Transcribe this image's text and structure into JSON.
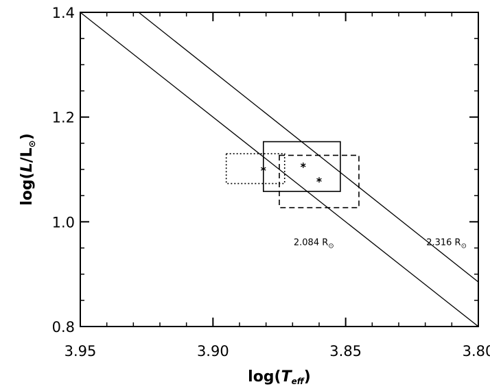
{
  "chart_data": {
    "type": "line",
    "xlim": [
      3.95,
      3.8
    ],
    "ylim": [
      0.8,
      1.4
    ],
    "x_ticks": [
      3.95,
      3.9,
      3.85,
      3.8
    ],
    "y_ticks": [
      0.8,
      1.0,
      1.2,
      1.4
    ],
    "x_tick_labels": [
      "3.95",
      "3.90",
      "3.85",
      "3.80"
    ],
    "y_tick_labels": [
      "0.8",
      "1.0",
      "1.2",
      "1.4"
    ],
    "x_minor_step": 0.01,
    "y_minor_step": 0.05,
    "xlabel": {
      "prefix": "log(",
      "var": "T",
      "sub": "eff",
      "suffix": ")"
    },
    "ylabel": {
      "prefix": "log(",
      "var": "L",
      "slash": "/",
      "sym": "L",
      "sub": "⊙",
      "suffix": ")"
    },
    "radius_lines": [
      {
        "label": "2.084 R",
        "sun": "⊙",
        "points": [
          [
            3.95,
            1.4
          ],
          [
            3.8,
            0.8
          ]
        ],
        "label_at": [
          3.862,
          0.955
        ]
      },
      {
        "label": "2.316 R",
        "sun": "⊙",
        "points": [
          [
            3.928,
            1.4
          ],
          [
            3.8,
            0.885
          ]
        ],
        "label_at": [
          3.812,
          0.955
        ]
      }
    ],
    "boxes": [
      {
        "style": "dotted",
        "x": [
          3.895,
          3.873
        ],
        "y": [
          1.073,
          1.13
        ]
      },
      {
        "style": "solid",
        "x": [
          3.881,
          3.852
        ],
        "y": [
          1.058,
          1.153
        ]
      },
      {
        "style": "dashed",
        "x": [
          3.875,
          3.845
        ],
        "y": [
          1.027,
          1.127
        ]
      }
    ],
    "points": [
      {
        "x": 3.881,
        "y": 1.101
      },
      {
        "x": 3.866,
        "y": 1.108
      },
      {
        "x": 3.86,
        "y": 1.08
      }
    ]
  }
}
